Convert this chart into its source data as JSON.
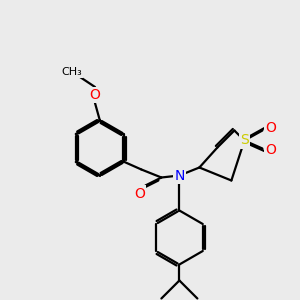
{
  "background_color": "#ebebeb",
  "bond_color": "#000000",
  "atom_colors": {
    "O": "#ff0000",
    "N": "#0000ff",
    "S": "#cccc00"
  },
  "figsize": [
    3.0,
    3.0
  ],
  "dpi": 100,
  "lw": 1.6,
  "fs": 9.5
}
